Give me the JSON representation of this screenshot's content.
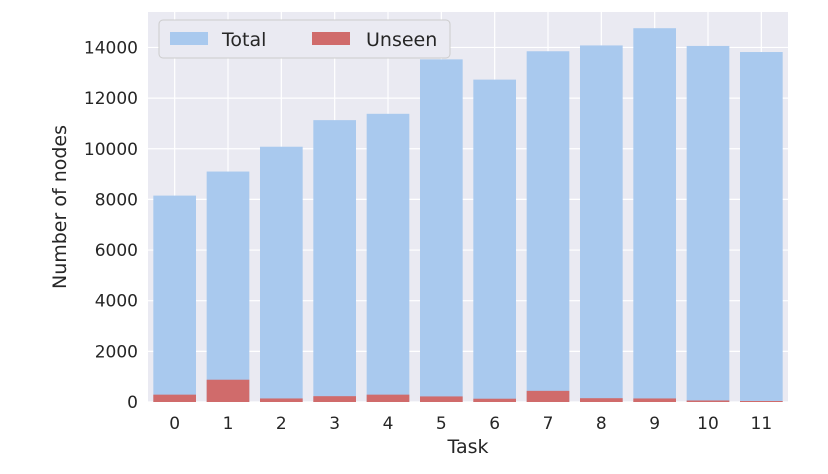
{
  "chart_data": {
    "type": "bar",
    "xlabel": "Task",
    "ylabel": "Number of nodes",
    "categories": [
      "0",
      "1",
      "2",
      "3",
      "4",
      "5",
      "6",
      "7",
      "8",
      "9",
      "10",
      "11"
    ],
    "series": [
      {
        "name": "Total",
        "color": "#a9c9ee",
        "values": [
          8150,
          9100,
          10080,
          11130,
          11380,
          13530,
          12730,
          13850,
          14080,
          14760,
          14060,
          13820
        ]
      },
      {
        "name": "Unseen",
        "color": "#d06b6b",
        "values": [
          290,
          880,
          140,
          230,
          290,
          220,
          130,
          440,
          150,
          140,
          60,
          40
        ]
      }
    ],
    "yticks": [
      0,
      2000,
      4000,
      6000,
      8000,
      10000,
      12000,
      14000
    ],
    "ylim": [
      0,
      15400
    ],
    "grid": true,
    "legend": "top-left",
    "background_color": "#eaeaf2",
    "grid_color": "#ffffff"
  }
}
